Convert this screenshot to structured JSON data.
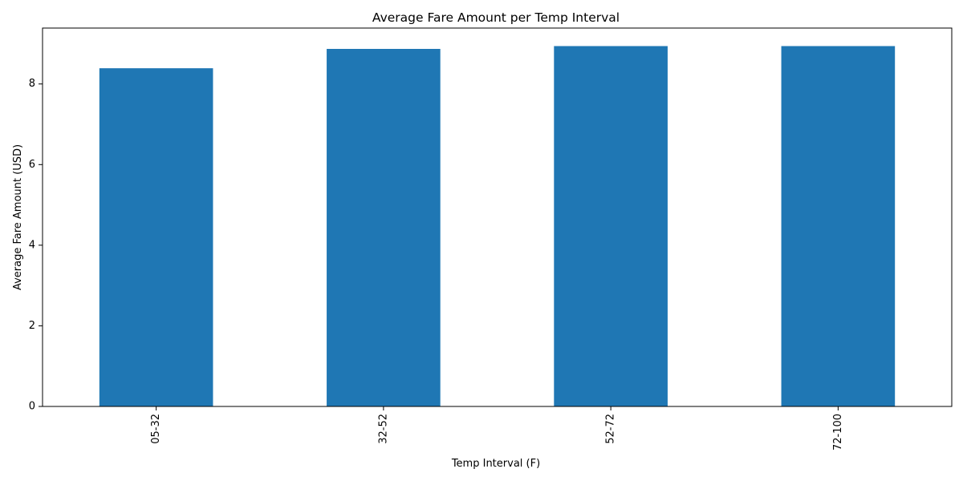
{
  "chart_data": {
    "type": "bar",
    "title": "Average Fare Amount per Temp Interval",
    "xlabel": "Temp Interval (F)",
    "ylabel": "Average Fare Amount (USD)",
    "categories": [
      "05-32",
      "32-52",
      "52-72",
      "72-100"
    ],
    "values": [
      8.39,
      8.87,
      8.94,
      8.94
    ],
    "ylim": [
      0,
      9.387
    ],
    "yticks": [
      0,
      2,
      4,
      6,
      8
    ],
    "ytick_labels": [
      "0",
      "2",
      "4",
      "6",
      "8"
    ],
    "bar_color": "#1f77b4",
    "grid": false,
    "legend": "none"
  }
}
